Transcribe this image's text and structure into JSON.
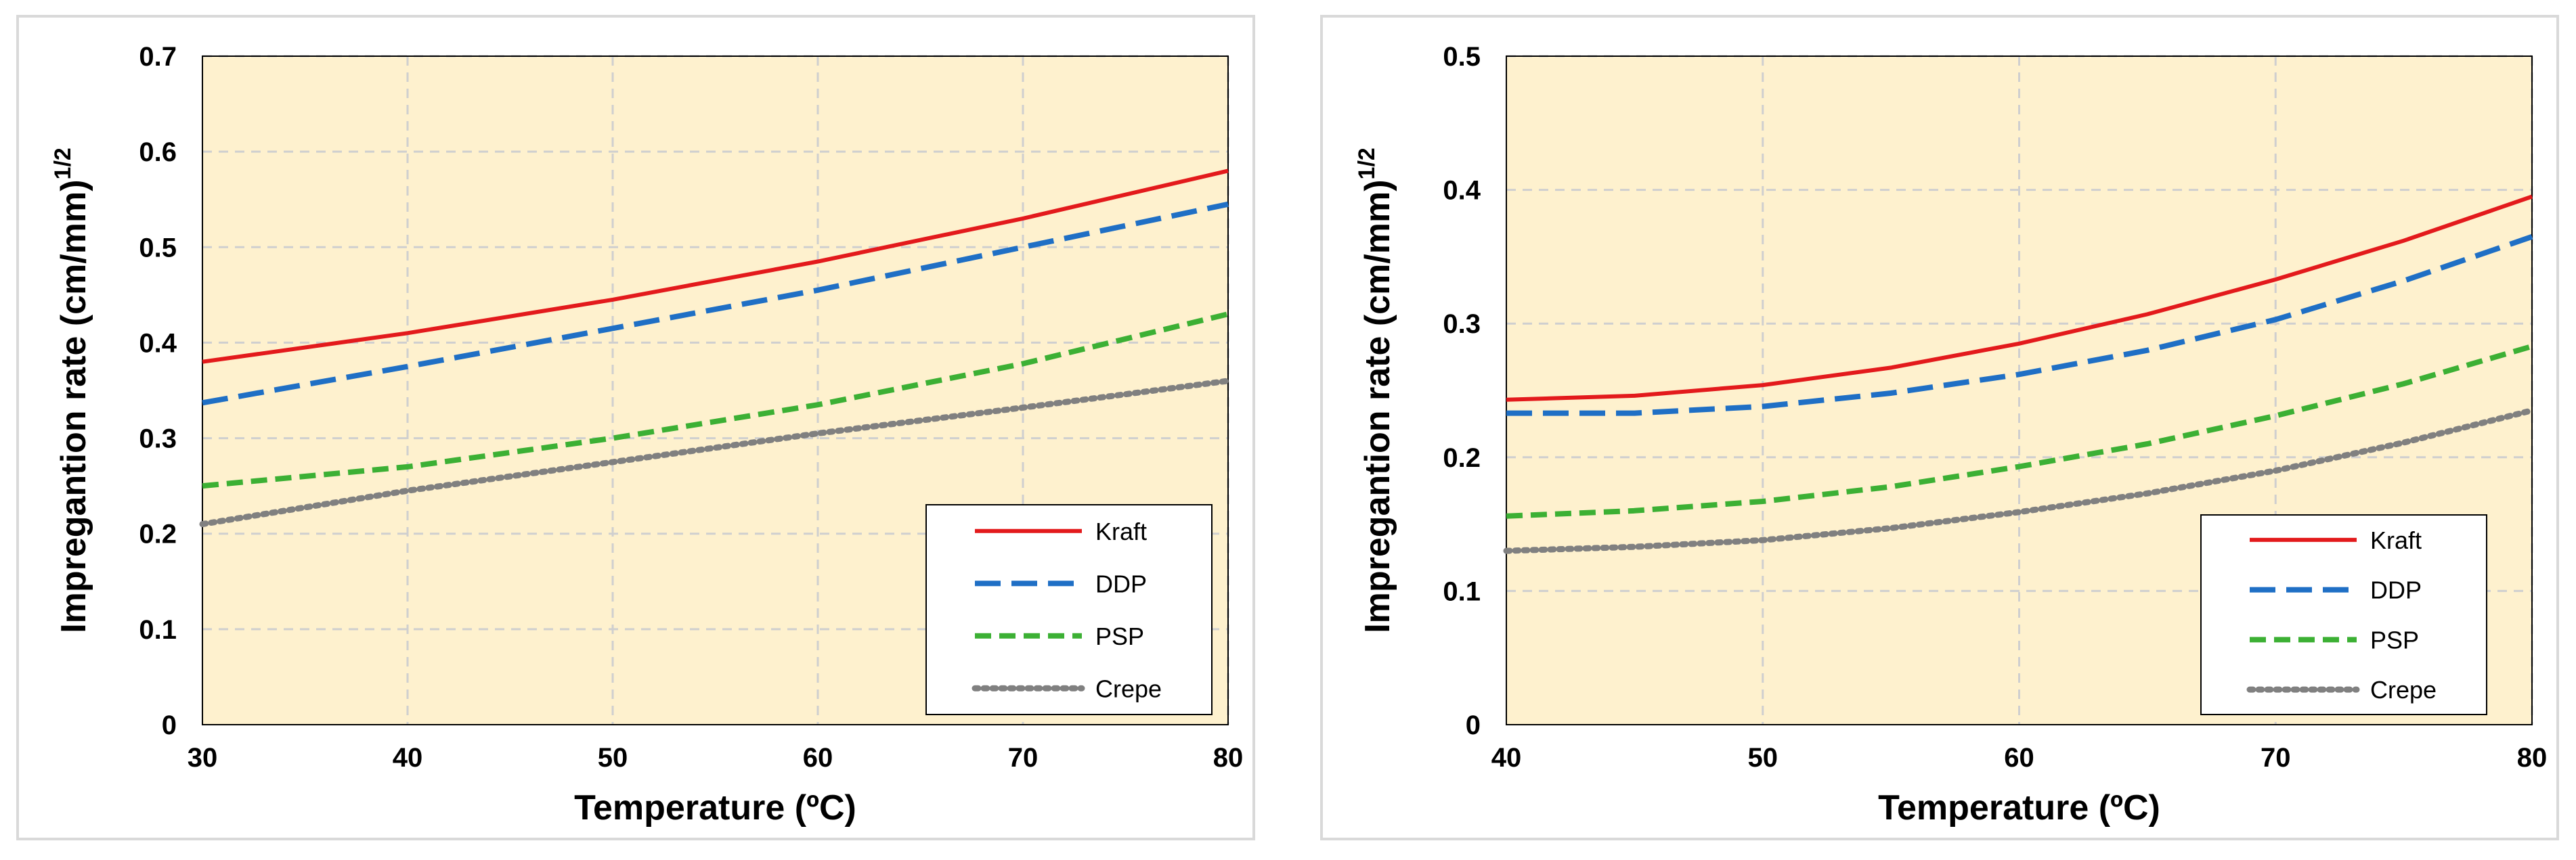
{
  "chart_data": [
    {
      "type": "line",
      "xlabel": "Temperature (ºC)",
      "ylabel": "Impregantion rate (cm/mm)",
      "ylabel_sup": "1/2",
      "xlim": [
        30,
        80
      ],
      "ylim": [
        0,
        0.7
      ],
      "x_ticks": [
        30,
        40,
        50,
        60,
        70,
        80
      ],
      "y_ticks": [
        0,
        0.1,
        0.2,
        0.3,
        0.4,
        0.5,
        0.6,
        0.7
      ],
      "grid": true,
      "legend": "bottom-right",
      "x": [
        30,
        40,
        50,
        60,
        70,
        80
      ],
      "series": [
        {
          "name": "Kraft",
          "values": [
            0.38,
            0.41,
            0.445,
            0.485,
            0.53,
            0.58
          ],
          "color": "#e31a1c",
          "style": "solid"
        },
        {
          "name": "DDP",
          "values": [
            0.337,
            0.375,
            0.415,
            0.455,
            0.5,
            0.545
          ],
          "color": "#1f6fc5",
          "style": "longdash"
        },
        {
          "name": "PSP",
          "values": [
            0.25,
            0.27,
            0.3,
            0.335,
            0.378,
            0.43
          ],
          "color": "#3cb034",
          "style": "dash"
        },
        {
          "name": "Crepe",
          "values": [
            0.21,
            0.245,
            0.275,
            0.305,
            0.332,
            0.36
          ],
          "color": "#808080",
          "style": "dot"
        }
      ]
    },
    {
      "type": "line",
      "xlabel": "Temperature (ºC)",
      "ylabel": "Impregantion rate (cm/mm)",
      "ylabel_sup": "1/2",
      "xlim": [
        40,
        80
      ],
      "ylim": [
        0,
        0.5
      ],
      "x_ticks": [
        40,
        50,
        60,
        70,
        80
      ],
      "y_ticks": [
        0,
        0.1,
        0.2,
        0.3,
        0.4,
        0.5
      ],
      "grid": true,
      "legend": "bottom-right",
      "x": [
        40,
        45,
        50,
        55,
        60,
        65,
        70,
        75,
        80
      ],
      "series": [
        {
          "name": "Kraft",
          "values": [
            0.243,
            0.246,
            0.254,
            0.267,
            0.285,
            0.307,
            0.333,
            0.362,
            0.395
          ],
          "color": "#e31a1c",
          "style": "solid"
        },
        {
          "name": "DDP",
          "values": [
            0.233,
            0.233,
            0.238,
            0.248,
            0.262,
            0.28,
            0.303,
            0.332,
            0.365
          ],
          "color": "#1f6fc5",
          "style": "longdash"
        },
        {
          "name": "PSP",
          "values": [
            0.156,
            0.16,
            0.167,
            0.178,
            0.193,
            0.21,
            0.231,
            0.255,
            0.283
          ],
          "color": "#3cb034",
          "style": "dash"
        },
        {
          "name": "Crepe",
          "values": [
            0.13,
            0.133,
            0.138,
            0.147,
            0.159,
            0.173,
            0.19,
            0.211,
            0.235
          ],
          "color": "#808080",
          "style": "dot"
        }
      ]
    }
  ]
}
